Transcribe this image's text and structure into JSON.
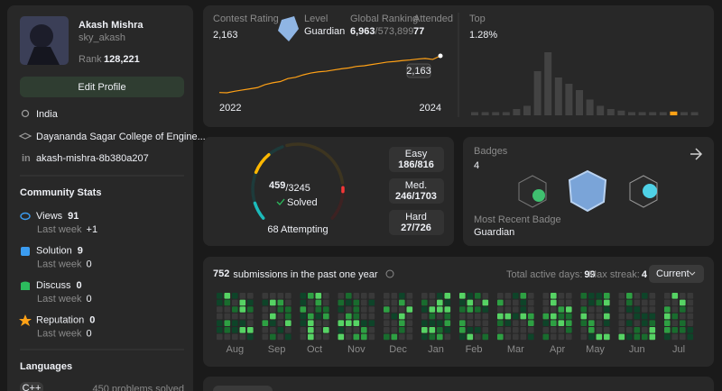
{
  "profile": {
    "name": "Akash Mishra",
    "username": "sky_akash",
    "rank_label": "Rank",
    "rank": "128,221",
    "edit_button": "Edit Profile",
    "location": "India",
    "school": "Dayananda Sagar College of Engine...",
    "linkedin": "akash-mishra-8b380a207"
  },
  "community_stats": {
    "title": "Community Stats",
    "items": [
      {
        "label": "Views",
        "value": "91",
        "sub_label": "Last week",
        "sub_value": "+1"
      },
      {
        "label": "Solution",
        "value": "9",
        "sub_label": "Last week",
        "sub_value": "0"
      },
      {
        "label": "Discuss",
        "value": "0",
        "sub_label": "Last week",
        "sub_value": "0"
      },
      {
        "label": "Reputation",
        "value": "0",
        "sub_label": "Last week",
        "sub_value": "0"
      }
    ]
  },
  "languages": {
    "title": "Languages",
    "items": [
      {
        "name": "C++",
        "solved": "450 problems solved"
      }
    ]
  },
  "contest": {
    "rating_label": "Contest Rating",
    "rating": "2,163",
    "level_label": "Level",
    "level": "Guardian",
    "ranking_label": "Global Ranking",
    "ranking": "6,963",
    "ranking_total": "/573,899",
    "attended_label": "Attended",
    "attended": "77",
    "top_label": "Top",
    "top": "1.28%",
    "axis_start": "2022",
    "axis_end": "2024",
    "tooltip": "2,163",
    "rating_history": [
      1560,
      1555,
      1580,
      1600,
      1620,
      1640,
      1690,
      1720,
      1740,
      1790,
      1810,
      1850,
      1880,
      1900,
      1910,
      1930,
      1950,
      1965,
      1990,
      2000,
      2020,
      2040,
      2060,
      2070,
      2085,
      2095,
      2110,
      2120,
      2105,
      2163
    ],
    "distribution": [
      1,
      1,
      1,
      1,
      2,
      3,
      14,
      20,
      12,
      10,
      8,
      5,
      3,
      2,
      1.5,
      1,
      1,
      1,
      1,
      1.2,
      1,
      1
    ],
    "distribution_highlight": 19
  },
  "solved": {
    "count": "459",
    "total": "/3245",
    "label": "Solved",
    "attempting": "68 Attempting",
    "levels": [
      {
        "name": "Easy",
        "value": "186/816",
        "color": "#1cbaba"
      },
      {
        "name": "Med.",
        "value": "246/1703",
        "color": "#ffb700"
      },
      {
        "name": "Hard",
        "value": "27/726",
        "color": "#f63737"
      }
    ]
  },
  "badges": {
    "title": "Badges",
    "count": "4",
    "recent_label": "Most Recent Badge",
    "recent": "Guardian"
  },
  "submissions": {
    "count": "752",
    "label": "submissions in the past one year",
    "active_label": "Total active days:",
    "active": "99",
    "streak_label": "Max streak:",
    "streak": "4",
    "period": "Current",
    "months": [
      "Aug",
      "Sep",
      "Oct",
      "Nov",
      "Dec",
      "Jan",
      "Feb",
      "Mar",
      "Apr",
      "May",
      "Jun",
      "Jul"
    ]
  }
}
